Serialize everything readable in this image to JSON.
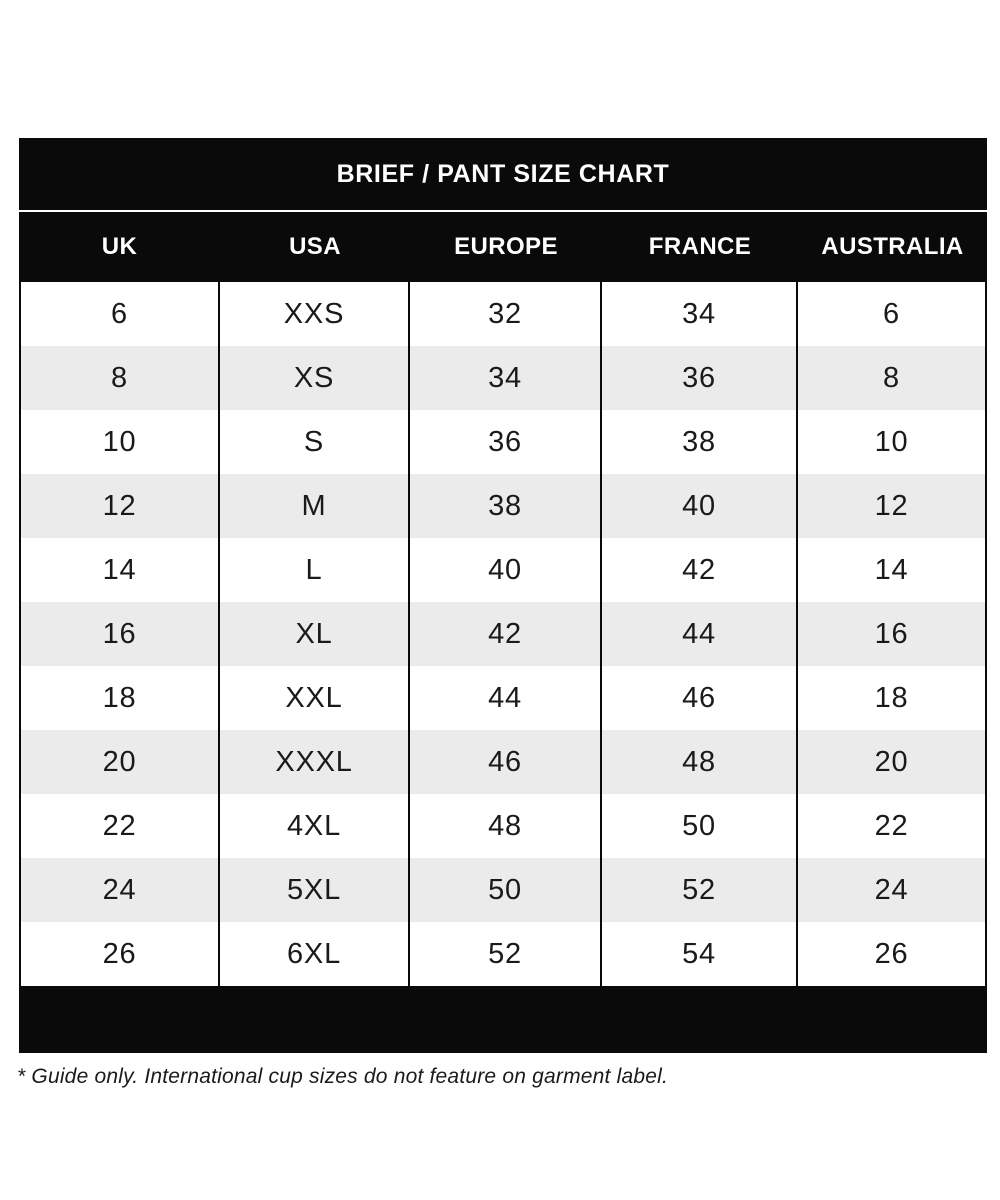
{
  "chart_data": {
    "type": "table",
    "title": "BRIEF / PANT SIZE CHART",
    "columns": [
      "UK",
      "USA",
      "EUROPE",
      "FRANCE",
      "AUSTRALIA"
    ],
    "rows": [
      [
        "6",
        "XXS",
        "32",
        "34",
        "6"
      ],
      [
        "8",
        "XS",
        "34",
        "36",
        "8"
      ],
      [
        "10",
        "S",
        "36",
        "38",
        "10"
      ],
      [
        "12",
        "M",
        "38",
        "40",
        "12"
      ],
      [
        "14",
        "L",
        "40",
        "42",
        "14"
      ],
      [
        "16",
        "XL",
        "42",
        "44",
        "16"
      ],
      [
        "18",
        "XXL",
        "44",
        "46",
        "18"
      ],
      [
        "20",
        "XXXL",
        "46",
        "48",
        "20"
      ],
      [
        "22",
        "4XL",
        "48",
        "50",
        "22"
      ],
      [
        "24",
        "5XL",
        "50",
        "52",
        "24"
      ],
      [
        "26",
        "6XL",
        "52",
        "54",
        "26"
      ]
    ],
    "footnote": "* Guide only. International cup sizes do not feature on garment label.",
    "layout": {
      "striped": true,
      "legend_position": "none",
      "grid": "vertical-only"
    },
    "colors": {
      "bar_background": "#0a0a0a",
      "bar_text": "#ffffff",
      "stripe_row": "#ebebeb",
      "body_text": "#1a1a1a",
      "page_background": "#ffffff"
    }
  }
}
